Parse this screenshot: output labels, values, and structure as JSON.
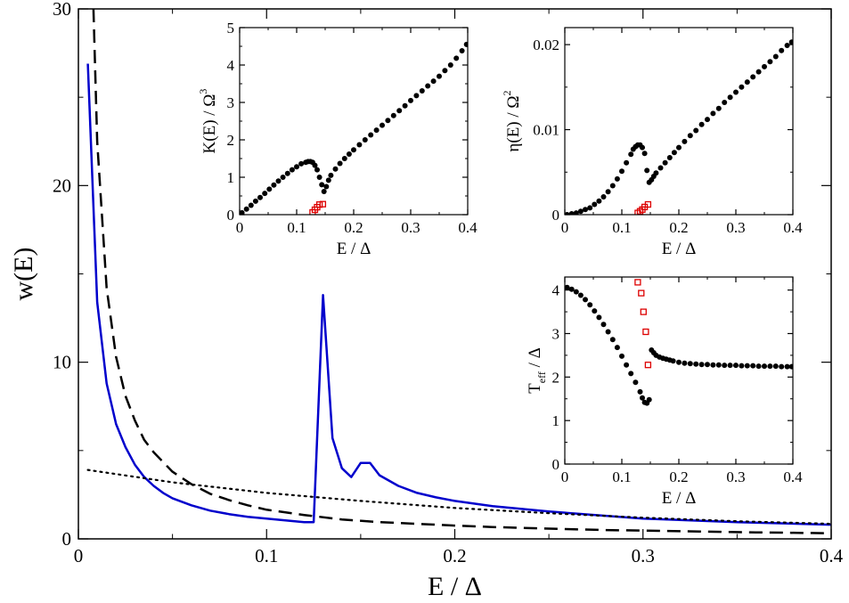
{
  "chart_data": [
    {
      "id": "main",
      "type": "line",
      "xlabel": "E / Δ",
      "ylabel": "w(E)",
      "xlim": [
        0,
        0.4
      ],
      "ylim": [
        0,
        30
      ],
      "xticks": [
        0,
        0.1,
        0.2,
        0.3,
        0.4
      ],
      "xtick_labels": [
        "0",
        "0.1",
        "0.2",
        "0.3",
        "0.4"
      ],
      "yticks": [
        0,
        10,
        20,
        30
      ],
      "ytick_labels": [
        "0",
        "10",
        "20",
        "30"
      ],
      "grid": false,
      "series": [
        {
          "style": "solid",
          "color": "#0000cc",
          "x": [
            0.005,
            0.01,
            0.015,
            0.02,
            0.025,
            0.03,
            0.035,
            0.04,
            0.045,
            0.05,
            0.06,
            0.07,
            0.08,
            0.09,
            0.1,
            0.11,
            0.12,
            0.125,
            0.13,
            0.135,
            0.14,
            0.145,
            0.15,
            0.155,
            0.16,
            0.17,
            0.18,
            0.19,
            0.2,
            0.22,
            0.25,
            0.3,
            0.35,
            0.4
          ],
          "y": [
            26.9,
            13.4,
            8.8,
            6.5,
            5.2,
            4.2,
            3.5,
            3.0,
            2.6,
            2.3,
            1.9,
            1.6,
            1.4,
            1.25,
            1.15,
            1.05,
            0.95,
            0.95,
            13.8,
            5.7,
            4.0,
            3.5,
            4.3,
            4.3,
            3.6,
            3.0,
            2.6,
            2.35,
            2.15,
            1.85,
            1.55,
            1.15,
            0.95,
            0.8
          ]
        },
        {
          "style": "dashed",
          "color": "#000000",
          "x": [
            0.008,
            0.01,
            0.015,
            0.02,
            0.025,
            0.03,
            0.035,
            0.04,
            0.05,
            0.06,
            0.07,
            0.08,
            0.09,
            0.1,
            0.12,
            0.14,
            0.16,
            0.18,
            0.2,
            0.22,
            0.25,
            0.28,
            0.3,
            0.33,
            0.36,
            0.4
          ],
          "y": [
            30.0,
            22.5,
            14.2,
            10.3,
            8.1,
            6.7,
            5.6,
            4.9,
            3.8,
            3.1,
            2.55,
            2.2,
            1.9,
            1.65,
            1.35,
            1.1,
            0.95,
            0.85,
            0.75,
            0.67,
            0.58,
            0.5,
            0.47,
            0.42,
            0.37,
            0.32
          ]
        },
        {
          "style": "dotted",
          "color": "#000000",
          "x": [
            0.005,
            0.05,
            0.1,
            0.15,
            0.2,
            0.25,
            0.3,
            0.35,
            0.4
          ],
          "y": [
            3.9,
            3.2,
            2.6,
            2.15,
            1.75,
            1.45,
            1.2,
            1.0,
            0.85
          ]
        }
      ]
    },
    {
      "id": "inset_k",
      "type": "scatter",
      "xlabel": "E / Δ",
      "ylabel": "K(E) / Ω",
      "ylabel_sup": "3",
      "xlim": [
        0,
        0.4
      ],
      "ylim": [
        0,
        5
      ],
      "xticks": [
        0,
        0.1,
        0.2,
        0.3,
        0.4
      ],
      "xtick_labels": [
        "0",
        "0.1",
        "0.2",
        "0.3",
        "0.4"
      ],
      "yticks": [
        0,
        1,
        2,
        3,
        4,
        5
      ],
      "ytick_labels": [
        "0",
        "1",
        "2",
        "3",
        "4",
        "5"
      ],
      "series": [
        {
          "marker": "dot",
          "color": "#000000",
          "x": [
            0.004,
            0.012,
            0.02,
            0.028,
            0.036,
            0.044,
            0.052,
            0.06,
            0.068,
            0.076,
            0.084,
            0.092,
            0.1,
            0.108,
            0.116,
            0.12,
            0.124,
            0.128,
            0.132,
            0.136,
            0.14,
            0.144,
            0.148,
            0.152,
            0.156,
            0.16,
            0.168,
            0.176,
            0.184,
            0.192,
            0.2,
            0.21,
            0.22,
            0.23,
            0.24,
            0.25,
            0.26,
            0.27,
            0.28,
            0.29,
            0.3,
            0.31,
            0.32,
            0.33,
            0.34,
            0.35,
            0.36,
            0.37,
            0.38,
            0.39,
            0.398
          ],
          "y": [
            0.05,
            0.15,
            0.25,
            0.36,
            0.46,
            0.57,
            0.68,
            0.79,
            0.9,
            1.0,
            1.1,
            1.2,
            1.28,
            1.36,
            1.4,
            1.42,
            1.42,
            1.4,
            1.32,
            1.2,
            1.0,
            0.8,
            0.62,
            0.75,
            0.92,
            1.05,
            1.22,
            1.37,
            1.5,
            1.62,
            1.73,
            1.87,
            2.0,
            2.13,
            2.26,
            2.39,
            2.52,
            2.65,
            2.78,
            2.91,
            3.05,
            3.18,
            3.31,
            3.44,
            3.57,
            3.7,
            3.85,
            4.0,
            4.18,
            4.38,
            4.55
          ]
        },
        {
          "marker": "open-square",
          "color": "#dd0000",
          "x": [
            0.128,
            0.132,
            0.136,
            0.14,
            0.146
          ],
          "y": [
            0.06,
            0.13,
            0.2,
            0.27,
            0.28
          ]
        }
      ]
    },
    {
      "id": "inset_eta",
      "type": "scatter",
      "xlabel": "E / Δ",
      "ylabel": "η(E) / Ω",
      "ylabel_sup": "2",
      "xlim": [
        0,
        0.4
      ],
      "ylim": [
        0,
        0.022
      ],
      "xticks": [
        0,
        0.1,
        0.2,
        0.3,
        0.4
      ],
      "xtick_labels": [
        "0",
        "0.1",
        "0.2",
        "0.3",
        "0.4"
      ],
      "yticks": [
        0,
        0.01,
        0.02
      ],
      "ytick_labels": [
        "0",
        "0.01",
        "0.02"
      ],
      "series": [
        {
          "marker": "dot",
          "color": "#000000",
          "x": [
            0.004,
            0.012,
            0.02,
            0.028,
            0.036,
            0.044,
            0.052,
            0.06,
            0.068,
            0.076,
            0.084,
            0.092,
            0.1,
            0.108,
            0.116,
            0.12,
            0.124,
            0.128,
            0.132,
            0.136,
            0.14,
            0.144,
            0.148,
            0.152,
            0.156,
            0.16,
            0.168,
            0.176,
            0.184,
            0.192,
            0.2,
            0.21,
            0.22,
            0.23,
            0.24,
            0.25,
            0.26,
            0.27,
            0.28,
            0.29,
            0.3,
            0.31,
            0.32,
            0.33,
            0.34,
            0.35,
            0.36,
            0.37,
            0.38,
            0.39,
            0.398
          ],
          "y": [
            0.0,
            0.0001,
            0.0002,
            0.0004,
            0.0006,
            0.0008,
            0.0012,
            0.0016,
            0.0021,
            0.0027,
            0.0034,
            0.0042,
            0.0051,
            0.0061,
            0.0071,
            0.0077,
            0.008,
            0.0082,
            0.0082,
            0.0079,
            0.0072,
            0.0052,
            0.0038,
            0.0041,
            0.0045,
            0.0049,
            0.0055,
            0.0061,
            0.0067,
            0.0073,
            0.0079,
            0.0086,
            0.0093,
            0.0099,
            0.0106,
            0.0112,
            0.0119,
            0.0125,
            0.0132,
            0.0138,
            0.0144,
            0.015,
            0.0156,
            0.0162,
            0.0168,
            0.0174,
            0.018,
            0.0186,
            0.0193,
            0.0199,
            0.0203
          ]
        },
        {
          "marker": "open-square",
          "color": "#dd0000",
          "x": [
            0.128,
            0.132,
            0.136,
            0.14,
            0.146
          ],
          "y": [
            0.0002,
            0.0004,
            0.0006,
            0.0009,
            0.0012
          ]
        }
      ]
    },
    {
      "id": "inset_teff",
      "type": "scatter",
      "xlabel": "E / Δ",
      "ylabel": "T",
      "ylabel_sub": "eff",
      "ylabel_rest": " / Δ",
      "xlim": [
        0,
        0.4
      ],
      "ylim": [
        0,
        4.3
      ],
      "xticks": [
        0,
        0.1,
        0.2,
        0.3,
        0.4
      ],
      "xtick_labels": [
        "0",
        "0.1",
        "0.2",
        "0.3",
        "0.4"
      ],
      "yticks": [
        0,
        1,
        2,
        3,
        4
      ],
      "ytick_labels": [
        "0",
        "1",
        "2",
        "3",
        "4"
      ],
      "series": [
        {
          "marker": "dot",
          "color": "#000000",
          "x": [
            0.004,
            0.012,
            0.02,
            0.028,
            0.036,
            0.044,
            0.052,
            0.06,
            0.068,
            0.076,
            0.084,
            0.092,
            0.1,
            0.108,
            0.116,
            0.124,
            0.132,
            0.136,
            0.14,
            0.144,
            0.148,
            0.152,
            0.156,
            0.16,
            0.166,
            0.172,
            0.178,
            0.184,
            0.19,
            0.2,
            0.21,
            0.22,
            0.23,
            0.24,
            0.25,
            0.26,
            0.27,
            0.28,
            0.29,
            0.3,
            0.31,
            0.32,
            0.33,
            0.34,
            0.35,
            0.36,
            0.37,
            0.38,
            0.39,
            0.398
          ],
          "y": [
            4.06,
            4.02,
            3.96,
            3.88,
            3.78,
            3.66,
            3.52,
            3.37,
            3.21,
            3.04,
            2.86,
            2.68,
            2.48,
            2.28,
            2.08,
            1.88,
            1.66,
            1.52,
            1.42,
            1.4,
            1.48,
            2.62,
            2.56,
            2.5,
            2.46,
            2.43,
            2.41,
            2.39,
            2.37,
            2.34,
            2.32,
            2.31,
            2.3,
            2.29,
            2.29,
            2.28,
            2.28,
            2.27,
            2.27,
            2.27,
            2.26,
            2.26,
            2.26,
            2.25,
            2.25,
            2.25,
            2.25,
            2.24,
            2.24,
            2.24
          ]
        },
        {
          "marker": "open-square",
          "color": "#dd0000",
          "x": [
            0.128,
            0.134,
            0.138,
            0.142,
            0.146
          ],
          "y": [
            4.18,
            3.93,
            3.5,
            3.04,
            2.28
          ]
        }
      ]
    }
  ]
}
